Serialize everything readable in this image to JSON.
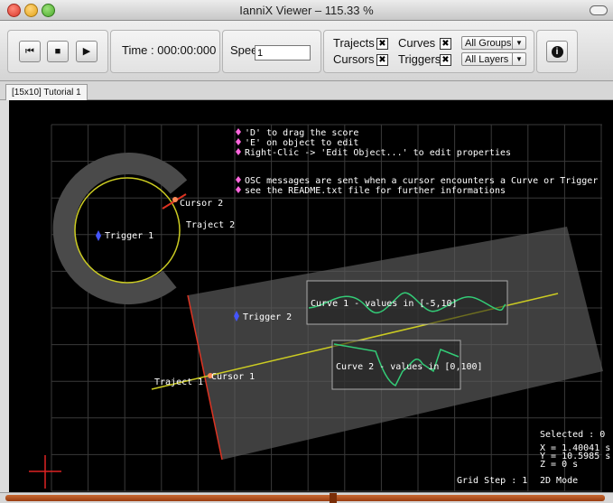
{
  "window": {
    "title": "IanniX Viewer – 115.33 %"
  },
  "transport": {
    "rewind_icon": "skip-to-start-icon",
    "stop_icon": "stop-icon",
    "play_icon": "play-icon",
    "rewind_glyph": "⏮",
    "stop_glyph": "■",
    "play_glyph": "▶"
  },
  "time": {
    "label": "Time : 000:00:000"
  },
  "speed": {
    "label": "Speed :",
    "value": "1"
  },
  "filters": {
    "trajects_label": "Trajects",
    "cursors_label": "Cursors",
    "curves_label": "Curves",
    "triggers_label": "Triggers",
    "check_mark": "✖",
    "groups_value": "All Groups",
    "layers_value": "All Layers",
    "info_glyph": "i"
  },
  "tabs": [
    {
      "label": "[15x10] Tutorial 1"
    }
  ],
  "canvas": {
    "help_lines": [
      "'D' to drag the score",
      "'E' on object to edit",
      "Right-Clic -> 'Edit Object...' to edit properties",
      "OSC messages are sent when a cursor encounters a Curve or Trigger",
      "see the README.txt file for further informations"
    ],
    "labels": {
      "cursor2": "Cursor 2",
      "traject2": "Traject 2",
      "trigger1": "Trigger 1",
      "trigger2": "Trigger 2",
      "traject1": "Traject 1",
      "cursor1": "Cursor 1",
      "curve1": "Curve 1 - values in [-5,10]",
      "curve2": "Curve 2 - values in [0,100]"
    },
    "status": {
      "selected": "Selected : 0",
      "x": "X = 1.40041 s",
      "y": "Y = 10.5985 s",
      "z": "Z = 0 s",
      "grid_step": "Grid Step : 1",
      "mode": "2D Mode"
    },
    "colors": {
      "grid": "#3a3a3a",
      "traject": "#cccc22",
      "cursor": "#dd3322",
      "trigger": "#4455ff",
      "curve": "#33cc77",
      "help_bullet": "#ff66dd"
    }
  }
}
